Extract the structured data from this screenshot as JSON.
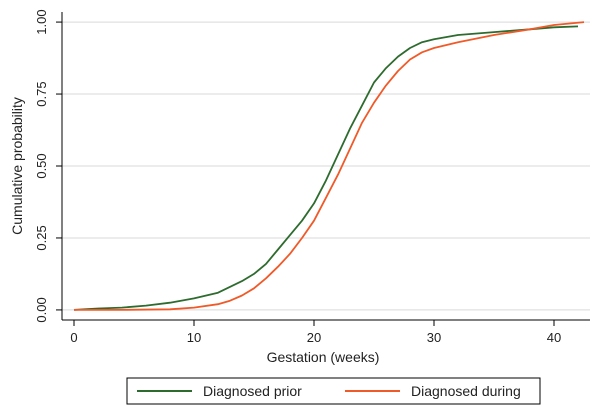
{
  "chart_data": {
    "type": "line",
    "xlabel": "Gestation (weeks)",
    "ylabel": "Cumulative probability",
    "xlim": [
      -1,
      43
    ],
    "ylim": [
      -0.035,
      1.035
    ],
    "x_ticks": [
      0,
      10,
      20,
      30,
      40
    ],
    "y_ticks": [
      0,
      0.25,
      0.5,
      0.75,
      1
    ],
    "x_tick_labels": [
      "0",
      "10",
      "20",
      "30",
      "40"
    ],
    "y_tick_labels": [
      "0.00",
      "0.25",
      "0.50",
      "0.75",
      "1.00"
    ],
    "grid": "horizontal",
    "legend_position": "bottom",
    "series": [
      {
        "name": "Diagnosed prior",
        "color": "#2e6b2e",
        "x": [
          0,
          2,
          4,
          6,
          8,
          10,
          12,
          14,
          15,
          16,
          17,
          18,
          19,
          20,
          21,
          22,
          23,
          24,
          25,
          26,
          27,
          28,
          29,
          30,
          32,
          35,
          38,
          40,
          42
        ],
        "y": [
          0.0,
          0.005,
          0.008,
          0.015,
          0.025,
          0.04,
          0.06,
          0.1,
          0.125,
          0.16,
          0.21,
          0.26,
          0.31,
          0.37,
          0.45,
          0.54,
          0.63,
          0.71,
          0.79,
          0.84,
          0.88,
          0.91,
          0.93,
          0.94,
          0.955,
          0.965,
          0.975,
          0.982,
          0.985
        ]
      },
      {
        "name": "Diagnosed during",
        "color": "#f05a28",
        "x": [
          0,
          4,
          8,
          10,
          12,
          13,
          14,
          15,
          16,
          17,
          18,
          19,
          20,
          21,
          22,
          23,
          24,
          25,
          26,
          27,
          28,
          29,
          30,
          32,
          35,
          38,
          40,
          42.5
        ],
        "y": [
          0.0,
          0.0,
          0.002,
          0.008,
          0.02,
          0.032,
          0.05,
          0.075,
          0.11,
          0.15,
          0.195,
          0.25,
          0.31,
          0.39,
          0.47,
          0.56,
          0.65,
          0.72,
          0.78,
          0.83,
          0.87,
          0.895,
          0.91,
          0.93,
          0.955,
          0.975,
          0.99,
          1.0
        ]
      }
    ]
  }
}
